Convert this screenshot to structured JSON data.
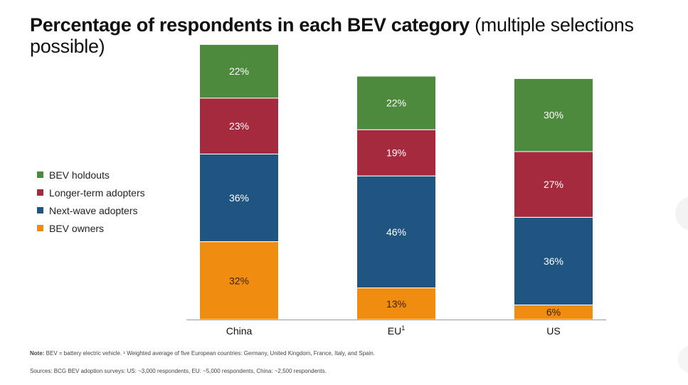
{
  "title": {
    "bold": "Percentage of respondents in each BEV category",
    "normal": " (multiple selections possible)"
  },
  "legend": [
    {
      "label": "BEV holdouts",
      "color": "#4e8a3e"
    },
    {
      "label": "Longer-term adopters",
      "color": "#a52a3d"
    },
    {
      "label": "Next-wave adopters",
      "color": "#1f5580"
    },
    {
      "label": "BEV owners",
      "color": "#f08c10"
    }
  ],
  "chart_data": {
    "type": "bar",
    "stacked": true,
    "categories": [
      "China",
      "EU",
      "US"
    ],
    "category_superscripts": [
      "",
      "1",
      ""
    ],
    "series": [
      {
        "name": "BEV owners",
        "color": "#f08c10",
        "values": [
          32,
          13,
          6
        ],
        "labels": [
          "32%",
          "13%",
          "6%"
        ]
      },
      {
        "name": "Next-wave adopters",
        "color": "#1f5580",
        "values": [
          36,
          46,
          36
        ],
        "labels": [
          "36%",
          "46%",
          "36%"
        ]
      },
      {
        "name": "Longer-term adopters",
        "color": "#a52a3d",
        "values": [
          23,
          19,
          27
        ],
        "labels": [
          "23%",
          "19%",
          "27%"
        ]
      },
      {
        "name": "BEV holdouts",
        "color": "#4e8a3e",
        "values": [
          22,
          22,
          30
        ],
        "labels": [
          "22%",
          "22%",
          "30%"
        ]
      }
    ],
    "label_colors": {
      "default": "#ffffff",
      "BEV owners": "#3a2200"
    },
    "axis_color": "#9a9a9a",
    "grid": false,
    "legend_position": "left"
  },
  "notes": {
    "note_label": "Note:",
    "note_text": " BEV = battery electric vehicle. ¹ Weighted average of five European countries: Germany, United Kingdom, France, Italy, and Spain.",
    "sources": "Sources: BCG BEV adoption surveys: US: ~3,000 respondents, EU: ~5,000 respondents, China: ~2,500 respondents."
  }
}
